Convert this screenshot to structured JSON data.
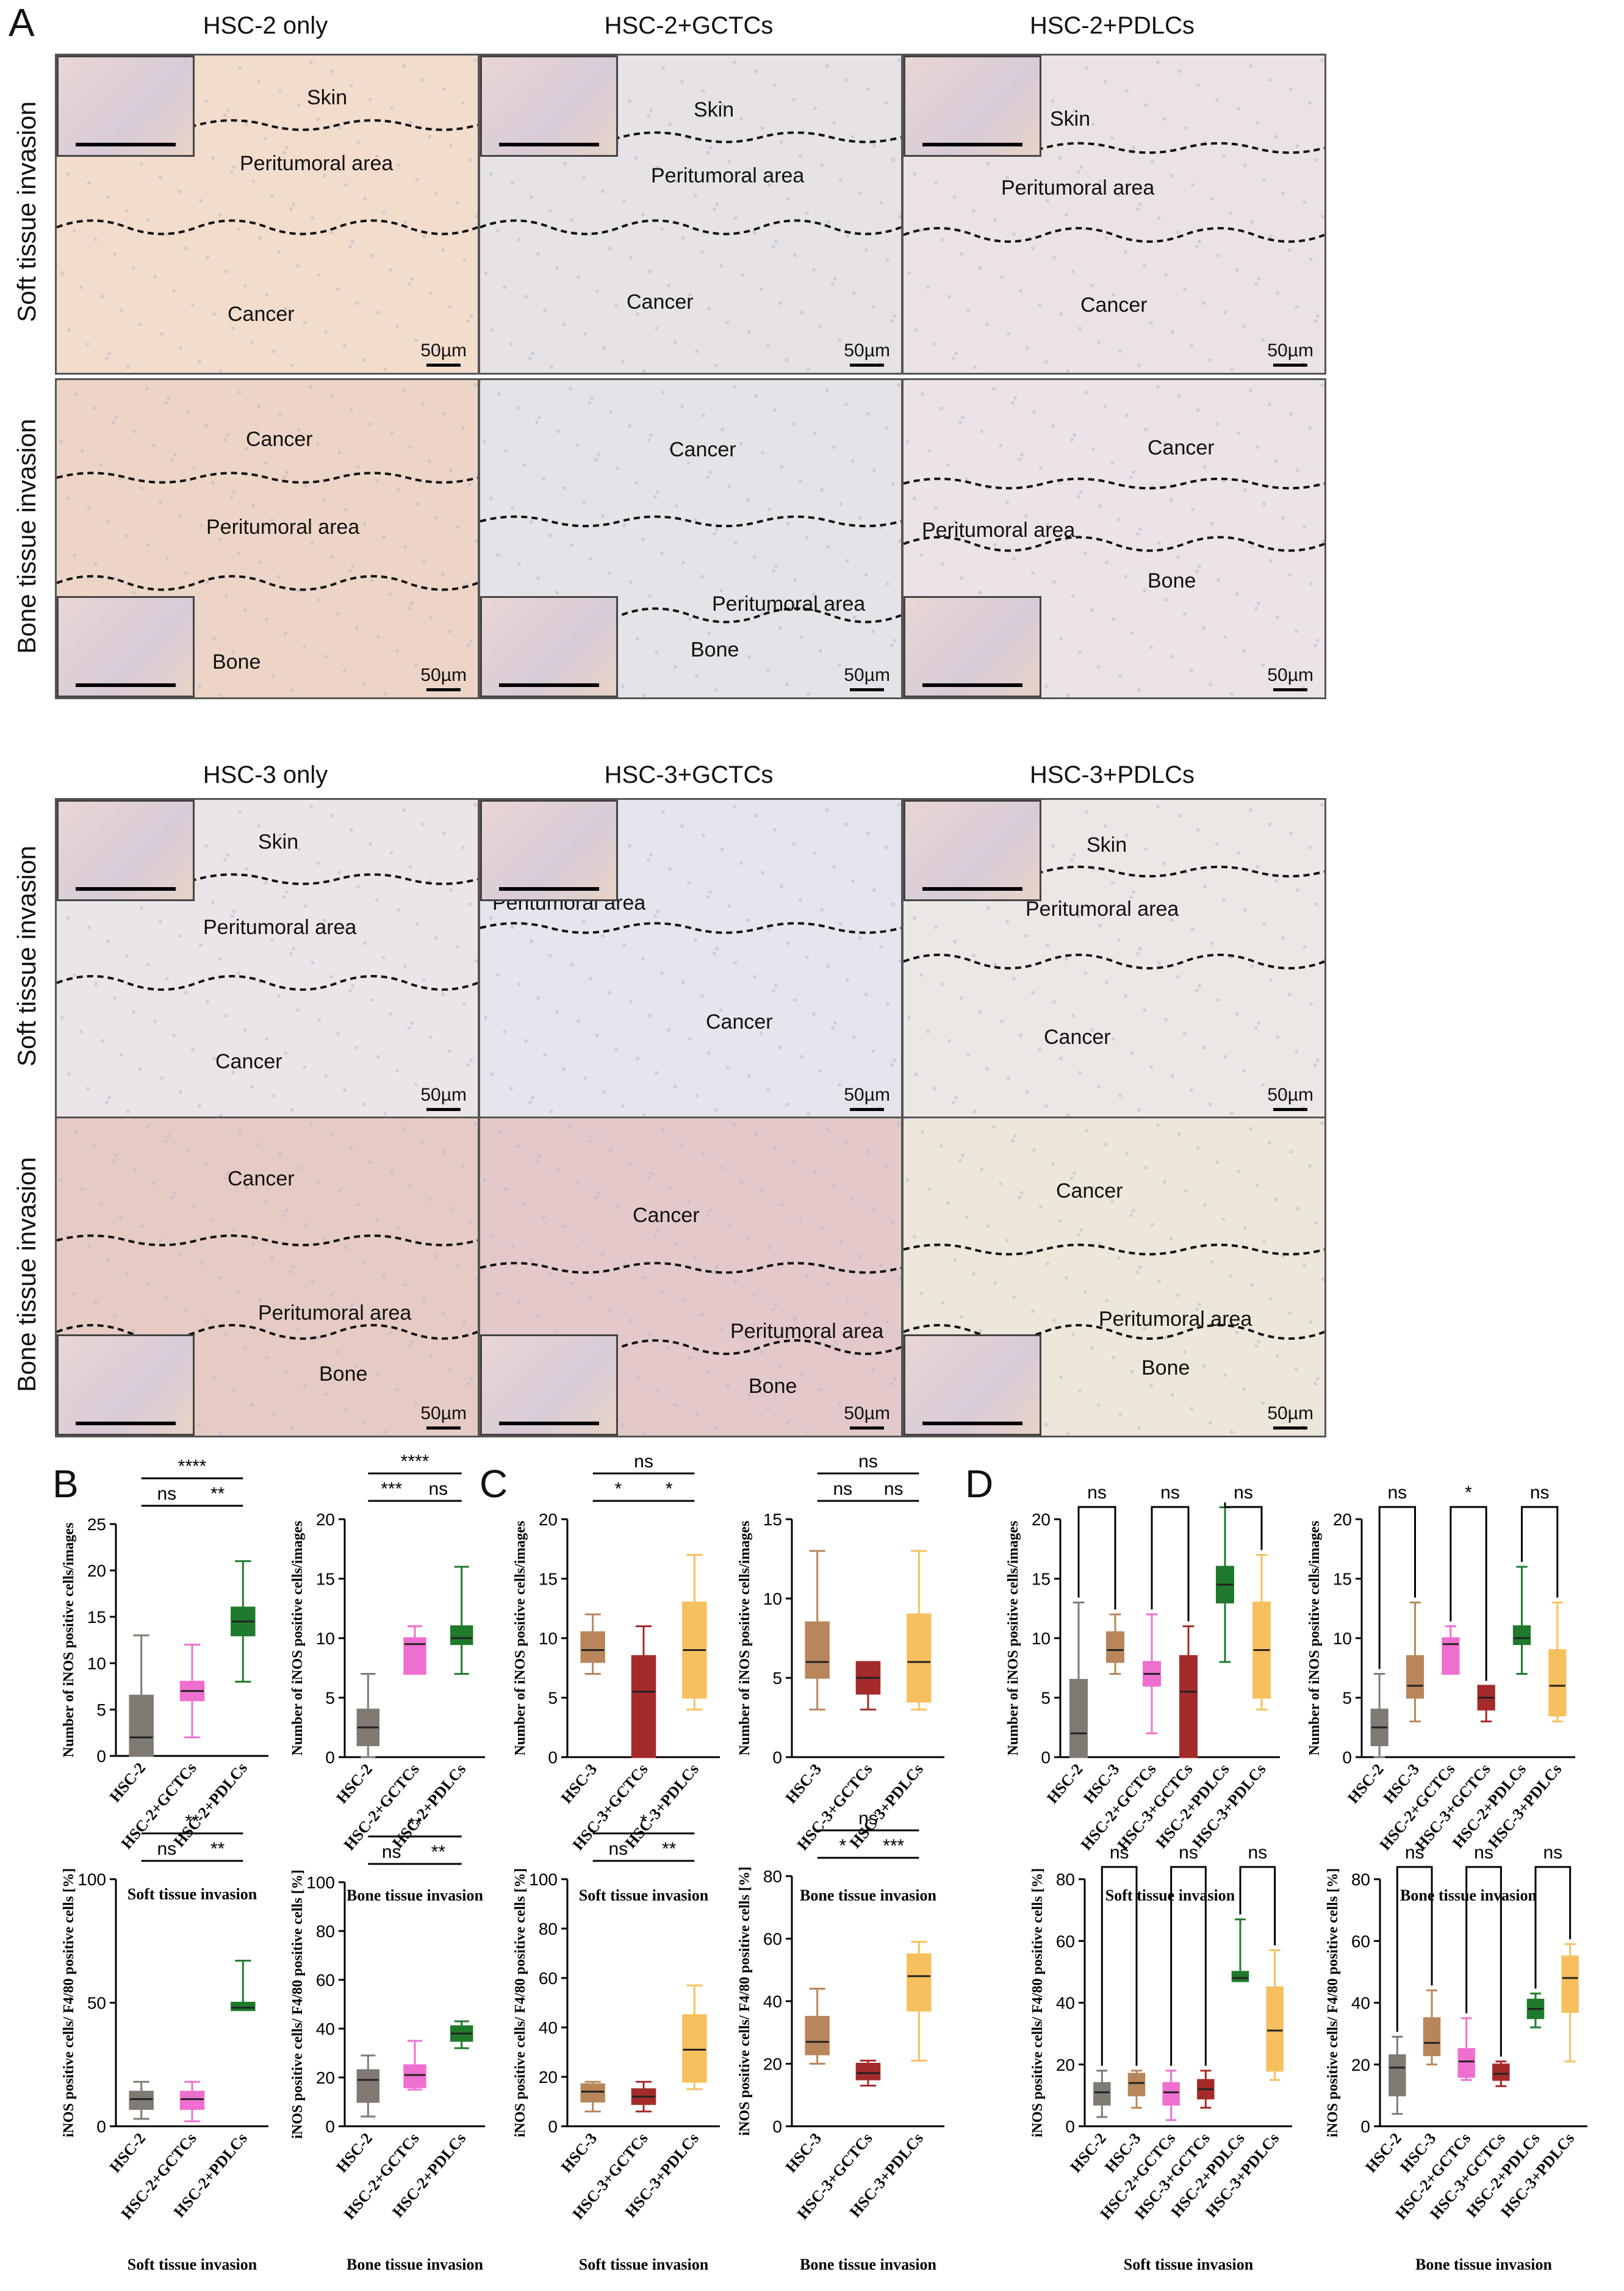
{
  "panel_letters": {
    "a": "A",
    "b": "B",
    "c": "C",
    "d": "D"
  },
  "micrographs": {
    "hsc2": {
      "columns": [
        "HSC-2 only",
        "HSC-2+GCTCs",
        "HSC-2+PDLCs"
      ],
      "rows": [
        "Soft tissue invasion",
        "Bone tissue invasion"
      ],
      "soft": [
        [
          "Skin",
          "Peritumoral area",
          "Cancer"
        ],
        [
          "Skin",
          "Peritumoral area",
          "Cancer"
        ],
        [
          "Skin",
          "Peritumoral area",
          "Cancer"
        ]
      ],
      "bone": [
        [
          "Cancer",
          "Peritumoral area",
          "Bone"
        ],
        [
          "Cancer",
          "Peritumoral area",
          "Bone"
        ],
        [
          "Cancer",
          "Peritumoral area",
          "Bone"
        ]
      ]
    },
    "hsc3": {
      "columns": [
        "HSC-3 only",
        "HSC-3+GCTCs",
        "HSC-3+PDLCs"
      ],
      "rows": [
        "Soft tissue invasion",
        "Bone tissue invasion"
      ],
      "soft": [
        [
          "Skin",
          "Peritumoral area",
          "Cancer"
        ],
        [
          "Peritumoral area",
          "Cancer"
        ],
        [
          "Skin",
          "Peritumoral area",
          "Cancer"
        ]
      ],
      "bone": [
        [
          "Cancer",
          "Peritumoral area",
          "Bone"
        ],
        [
          "Cancer",
          "Peritumoral area",
          "Bone"
        ],
        [
          "Cancer",
          "Peritumoral area",
          "Bone"
        ]
      ]
    },
    "scale_bar": "50µm"
  },
  "colors": {
    "gray": "#7f7a72",
    "brown": "#b8865a",
    "pink": "#ef6fd0",
    "red": "#a52a2a",
    "green": "#1f7a2c",
    "orange": "#f7c05f"
  },
  "chart_data": [
    {
      "id": "B1",
      "type": "box",
      "title": "",
      "xlabel": "Soft tissue invasion",
      "ylabel": "Number of iNOS positive cells/images",
      "ylim": [
        0,
        25
      ],
      "yticks": [
        0,
        5,
        10,
        15,
        20,
        25
      ],
      "categories": [
        "HSC-2",
        "HSC-2+GCTCs",
        "HSC-2+PDLCs"
      ],
      "colors": [
        "gray",
        "pink",
        "green"
      ],
      "boxes": [
        [
          0,
          0,
          2,
          6.5,
          13
        ],
        [
          2,
          6,
          7,
          8,
          12
        ],
        [
          8,
          13,
          14.5,
          16,
          21
        ]
      ],
      "brackets": [
        {
          "from": 0,
          "to": 1,
          "level": 0,
          "label": "ns"
        },
        {
          "from": 1,
          "to": 2,
          "level": 0,
          "label": "**"
        },
        {
          "from": 0,
          "to": 2,
          "level": 1,
          "label": "****"
        }
      ]
    },
    {
      "id": "B2",
      "type": "box",
      "title": "",
      "xlabel": "Bone tissue invasion",
      "ylabel": "Number of iNOS positive cells/images",
      "ylim": [
        0,
        20
      ],
      "yticks": [
        0,
        5,
        10,
        15,
        20
      ],
      "categories": [
        "HSC-2",
        "HSC-2+GCTCs",
        "HSC-2+PDLCs"
      ],
      "colors": [
        "gray",
        "pink",
        "green"
      ],
      "boxes": [
        [
          0,
          1,
          2.5,
          4,
          7
        ],
        [
          7,
          7,
          9.5,
          10,
          11
        ],
        [
          7,
          9.5,
          10,
          11,
          16
        ]
      ],
      "brackets": [
        {
          "from": 0,
          "to": 1,
          "level": 0,
          "label": "***"
        },
        {
          "from": 1,
          "to": 2,
          "level": 0,
          "label": "ns"
        },
        {
          "from": 0,
          "to": 2,
          "level": 1,
          "label": "****"
        }
      ]
    },
    {
      "id": "C1",
      "type": "box",
      "title": "",
      "xlabel": "Soft tissue invasion",
      "ylabel": "Number of iNOS positive cells/images",
      "ylim": [
        0,
        20
      ],
      "yticks": [
        0,
        5,
        10,
        15,
        20
      ],
      "categories": [
        "HSC-3",
        "HSC-3+GCTCs",
        "HSC-3+PDLCs"
      ],
      "colors": [
        "brown",
        "red",
        "orange"
      ],
      "boxes": [
        [
          7,
          8,
          9,
          10.5,
          12
        ],
        [
          0,
          0,
          5.5,
          8.5,
          11
        ],
        [
          4,
          5,
          9,
          13,
          17
        ]
      ],
      "brackets": [
        {
          "from": 0,
          "to": 1,
          "level": 0,
          "label": "*"
        },
        {
          "from": 1,
          "to": 2,
          "level": 0,
          "label": "*"
        },
        {
          "from": 0,
          "to": 2,
          "level": 1,
          "label": "ns"
        }
      ]
    },
    {
      "id": "C2",
      "type": "box",
      "title": "",
      "xlabel": "Bone tissue invasion",
      "ylabel": "Number of iNOS positive cells/images",
      "ylim": [
        0,
        15
      ],
      "yticks": [
        0,
        5,
        10,
        15
      ],
      "categories": [
        "HSC-3",
        "HSC-3+GCTCs",
        "HSC-3+PDLCs"
      ],
      "colors": [
        "brown",
        "red",
        "orange"
      ],
      "boxes": [
        [
          3,
          5,
          6,
          8.5,
          13
        ],
        [
          3,
          4,
          5,
          6,
          6
        ],
        [
          3,
          3.5,
          6,
          9,
          13
        ]
      ],
      "brackets": [
        {
          "from": 0,
          "to": 1,
          "level": 0,
          "label": "ns"
        },
        {
          "from": 1,
          "to": 2,
          "level": 0,
          "label": "ns"
        },
        {
          "from": 0,
          "to": 2,
          "level": 1,
          "label": "ns"
        }
      ]
    },
    {
      "id": "D1",
      "type": "box",
      "title": "",
      "xlabel": "Soft tissue invasion",
      "ylabel": "Number of iNOS positive cells/images",
      "ylim": [
        0,
        20
      ],
      "yticks": [
        0,
        5,
        10,
        15,
        20
      ],
      "categories": [
        "HSC-2",
        "HSC-3",
        "HSC-2+GCTCs",
        "HSC-3+GCTCs",
        "HSC-2+PDLCs",
        "HSC-3+PDLCs"
      ],
      "colors": [
        "gray",
        "brown",
        "pink",
        "red",
        "green",
        "orange"
      ],
      "boxes": [
        [
          0,
          0,
          2,
          6.5,
          13
        ],
        [
          7,
          8,
          9,
          10.5,
          12
        ],
        [
          2,
          6,
          7,
          8,
          12
        ],
        [
          0,
          0,
          5.5,
          8.5,
          11
        ],
        [
          8,
          13,
          14.5,
          16,
          21
        ],
        [
          4,
          5,
          9,
          13,
          17
        ]
      ],
      "brackets": [
        {
          "from": 0,
          "to": 1,
          "level": 0,
          "label": "ns"
        },
        {
          "from": 2,
          "to": 3,
          "level": 0,
          "label": "ns"
        },
        {
          "from": 4,
          "to": 5,
          "level": 0,
          "label": "ns"
        }
      ]
    },
    {
      "id": "D2",
      "type": "box",
      "title": "",
      "xlabel": "Bone tissue invasion",
      "ylabel": "Number of iNOS positive cells/images",
      "ylim": [
        0,
        20
      ],
      "yticks": [
        0,
        5,
        10,
        15,
        20
      ],
      "categories": [
        "HSC-2",
        "HSC-3",
        "HSC-2+GCTCs",
        "HSC-3+GCTCs",
        "HSC-2+PDLCs",
        "HSC-3+PDLCs"
      ],
      "colors": [
        "gray",
        "brown",
        "pink",
        "red",
        "green",
        "orange"
      ],
      "boxes": [
        [
          0,
          1,
          2.5,
          4,
          7
        ],
        [
          3,
          5,
          6,
          8.5,
          13
        ],
        [
          7,
          7,
          9.5,
          10,
          11
        ],
        [
          3,
          4,
          5,
          6,
          6
        ],
        [
          7,
          9.5,
          10,
          11,
          16
        ],
        [
          3,
          3.5,
          6,
          9,
          13
        ]
      ],
      "brackets": [
        {
          "from": 0,
          "to": 1,
          "level": 0,
          "label": "ns"
        },
        {
          "from": 2,
          "to": 3,
          "level": 0,
          "label": "*"
        },
        {
          "from": 4,
          "to": 5,
          "level": 0,
          "label": "ns"
        }
      ]
    },
    {
      "id": "B3",
      "type": "box",
      "title": "",
      "xlabel": "Soft tissue invasion",
      "ylabel": "iNOS positive cells/ F4/80 positive cells [%]",
      "ylim": [
        0,
        100
      ],
      "yticks": [
        0,
        50,
        100
      ],
      "categories": [
        "HSC-2",
        "HSC-2+GCTCs",
        "HSC-2+PDLCs"
      ],
      "colors": [
        "gray",
        "pink",
        "green"
      ],
      "boxes": [
        [
          3,
          7,
          11,
          14,
          18
        ],
        [
          2,
          7,
          11,
          14,
          18
        ],
        [
          47,
          47,
          48,
          50,
          67
        ]
      ],
      "brackets": [
        {
          "from": 0,
          "to": 1,
          "level": 0,
          "label": "ns"
        },
        {
          "from": 1,
          "to": 2,
          "level": 0,
          "label": "**"
        },
        {
          "from": 0,
          "to": 2,
          "level": 1,
          "label": "**"
        }
      ]
    },
    {
      "id": "B4",
      "type": "box",
      "title": "",
      "xlabel": "Bone tissue invasion",
      "ylabel": "iNOS positive cells/ F4/80 positive cells [%]",
      "ylim": [
        0,
        100
      ],
      "yticks": [
        0,
        20,
        40,
        60,
        80,
        100
      ],
      "categories": [
        "HSC-2",
        "HSC-2+GCTCs",
        "HSC-2+PDLCs"
      ],
      "colors": [
        "gray",
        "pink",
        "green"
      ],
      "boxes": [
        [
          4,
          10,
          19,
          23,
          29
        ],
        [
          15,
          16,
          21,
          25,
          35
        ],
        [
          32,
          35,
          38,
          41,
          43
        ]
      ],
      "brackets": [
        {
          "from": 0,
          "to": 1,
          "level": 0,
          "label": "ns"
        },
        {
          "from": 1,
          "to": 2,
          "level": 0,
          "label": "**"
        },
        {
          "from": 0,
          "to": 2,
          "level": 1,
          "label": "**"
        }
      ]
    },
    {
      "id": "C3",
      "type": "box",
      "title": "",
      "xlabel": "Soft tissue invasion",
      "ylabel": "iNOS positive cells/ F4/80 positive cells [%]",
      "ylim": [
        0,
        100
      ],
      "yticks": [
        0,
        20,
        40,
        60,
        80,
        100
      ],
      "categories": [
        "HSC-3",
        "HSC-3+GCTCs",
        "HSC-3+PDLCs"
      ],
      "colors": [
        "brown",
        "red",
        "orange"
      ],
      "boxes": [
        [
          6,
          10,
          14,
          17,
          18
        ],
        [
          6,
          9,
          12,
          15,
          18
        ],
        [
          15,
          18,
          31,
          45,
          57
        ]
      ],
      "brackets": [
        {
          "from": 0,
          "to": 1,
          "level": 0,
          "label": "ns"
        },
        {
          "from": 1,
          "to": 2,
          "level": 0,
          "label": "**"
        },
        {
          "from": 0,
          "to": 2,
          "level": 1,
          "label": "*"
        }
      ]
    },
    {
      "id": "C4",
      "type": "box",
      "title": "",
      "xlabel": "Bone tissue invasion",
      "ylabel": "iNOS positive cells/ F4/80 positive cells [%]",
      "ylim": [
        0,
        80
      ],
      "yticks": [
        0,
        20,
        40,
        60,
        80
      ],
      "categories": [
        "HSC-3",
        "HSC-3+GCTCs",
        "HSC-3+PDLCs"
      ],
      "colors": [
        "brown",
        "red",
        "orange"
      ],
      "boxes": [
        [
          20,
          23,
          27,
          35,
          44
        ],
        [
          13,
          15,
          17,
          20,
          21
        ],
        [
          21,
          37,
          48,
          55,
          59
        ]
      ],
      "brackets": [
        {
          "from": 0,
          "to": 1,
          "level": 0,
          "label": "*"
        },
        {
          "from": 1,
          "to": 2,
          "level": 0,
          "label": "***"
        },
        {
          "from": 0,
          "to": 2,
          "level": 1,
          "label": "ns"
        }
      ]
    },
    {
      "id": "D3",
      "type": "box",
      "title": "",
      "xlabel": "Soft tissue invasion",
      "ylabel": "iNOS positive cells/ F4/80 positive cells [%]",
      "ylim": [
        0,
        80
      ],
      "yticks": [
        0,
        20,
        40,
        60,
        80
      ],
      "categories": [
        "HSC-2",
        "HSC-3",
        "HSC-2+GCTCs",
        "HSC-3+GCTCs",
        "HSC-2+PDLCs",
        "HSC-3+PDLCs"
      ],
      "colors": [
        "gray",
        "brown",
        "pink",
        "red",
        "green",
        "orange"
      ],
      "boxes": [
        [
          3,
          7,
          11,
          14,
          18
        ],
        [
          6,
          10,
          14,
          17,
          18
        ],
        [
          2,
          7,
          11,
          14,
          18
        ],
        [
          6,
          9,
          12,
          15,
          18
        ],
        [
          47,
          47,
          48,
          50,
          67
        ],
        [
          15,
          18,
          31,
          45,
          57
        ]
      ],
      "brackets": [
        {
          "from": 0,
          "to": 1,
          "level": 0,
          "label": "ns"
        },
        {
          "from": 2,
          "to": 3,
          "level": 0,
          "label": "ns"
        },
        {
          "from": 4,
          "to": 5,
          "level": 0,
          "label": "ns"
        }
      ]
    },
    {
      "id": "D4",
      "type": "box",
      "title": "",
      "xlabel": "Bone tissue invasion",
      "ylabel": "iNOS positive cells/ F4/80 positive cells [%]",
      "ylim": [
        0,
        80
      ],
      "yticks": [
        0,
        20,
        40,
        60,
        80
      ],
      "categories": [
        "HSC-2",
        "HSC-3",
        "HSC-2+GCTCs",
        "HSC-3+GCTCs",
        "HSC-2+PDLCs",
        "HSC-3+PDLCs"
      ],
      "colors": [
        "gray",
        "brown",
        "pink",
        "red",
        "green",
        "orange"
      ],
      "boxes": [
        [
          4,
          10,
          19,
          23,
          29
        ],
        [
          20,
          23,
          27,
          35,
          44
        ],
        [
          15,
          16,
          21,
          25,
          35
        ],
        [
          13,
          15,
          17,
          20,
          21
        ],
        [
          32,
          35,
          38,
          41,
          43
        ],
        [
          21,
          37,
          48,
          55,
          59
        ]
      ],
      "brackets": [
        {
          "from": 0,
          "to": 1,
          "level": 0,
          "label": "ns"
        },
        {
          "from": 2,
          "to": 3,
          "level": 0,
          "label": "ns"
        },
        {
          "from": 4,
          "to": 5,
          "level": 0,
          "label": "ns"
        }
      ]
    }
  ]
}
